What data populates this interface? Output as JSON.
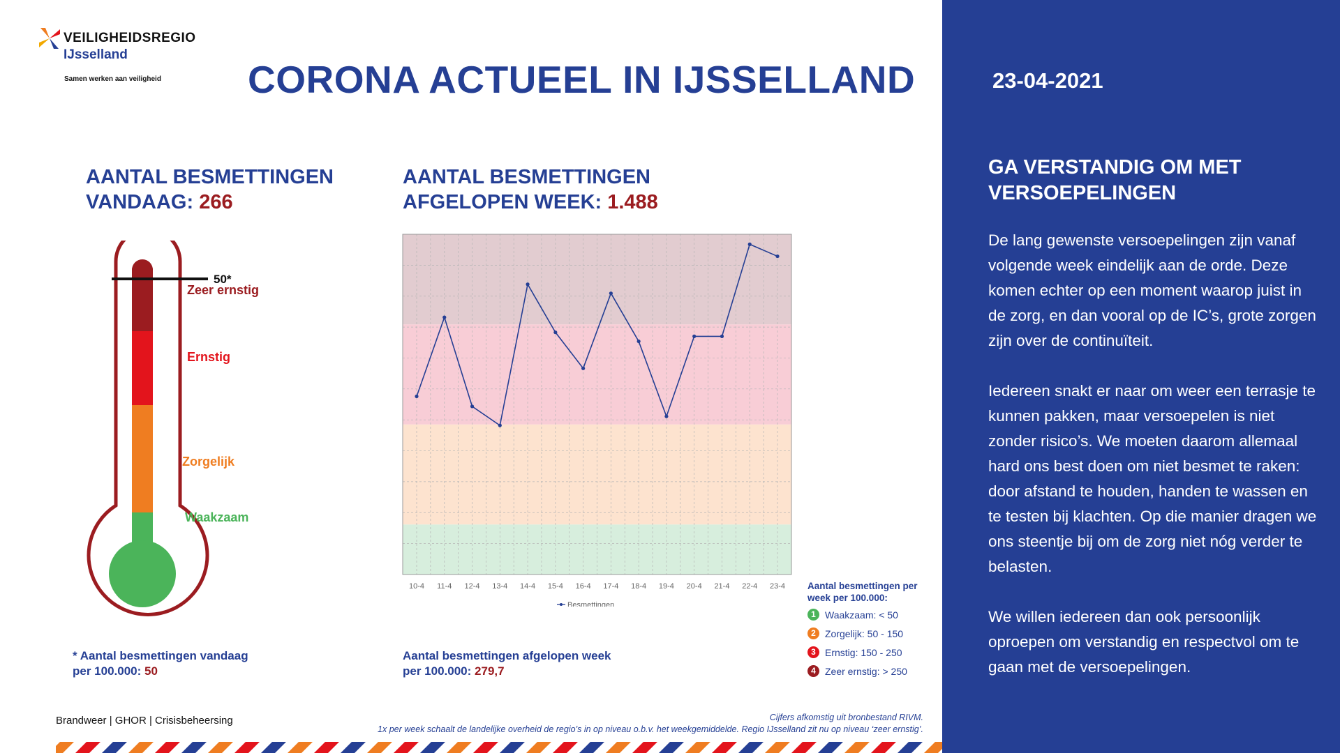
{
  "header": {
    "logo_brand": "VEILIGHEIDSREGIO",
    "logo_region": "IJsselland",
    "logo_tagline": "Samen werken aan veiligheid",
    "title": "CORONA ACTUEEL IN IJSSELLAND"
  },
  "today": {
    "title_line1": "AANTAL BESMETTINGEN",
    "title_line2": "VANDAAG:",
    "value": "266",
    "threshold_label": "50*",
    "zones": [
      "Zeer ernstig",
      "Ernstig",
      "Zorgelijk",
      "Waakzaam"
    ],
    "note_line1": "* Aantal besmettingen vandaag",
    "note_line2": "per 100.000:",
    "note_value": "50"
  },
  "week": {
    "title_line1": "AANTAL BESMETTINGEN",
    "title_line2": "AFGELOPEN WEEK:",
    "value": "1.488",
    "note_line1": "Aantal besmettingen afgelopen week",
    "note_line2": "per 100.000:",
    "note_value": "279,7"
  },
  "chart_data": {
    "type": "line",
    "title": "",
    "xlabel": "",
    "ylabel": "",
    "categories": [
      "10-4",
      "11-4",
      "12-4",
      "13-4",
      "14-4",
      "15-4",
      "16-4",
      "17-4",
      "18-4",
      "19-4",
      "20-4",
      "21-4",
      "22-4",
      "23-4"
    ],
    "series": [
      {
        "name": "Besmettingen",
        "values": [
          178,
          257,
          168,
          149,
          290,
          242,
          206,
          281,
          233,
          158,
          238,
          238,
          330,
          318
        ]
      }
    ],
    "ylim": [
      0,
      340
    ],
    "bands": [
      {
        "from": 0,
        "to": 50,
        "color": "#d7eedd"
      },
      {
        "from": 50,
        "to": 150,
        "color": "#fde3cf"
      },
      {
        "from": 150,
        "to": 250,
        "color": "#f8cdd6"
      },
      {
        "from": 250,
        "to": 340,
        "color": "#e2ccd0"
      }
    ],
    "grid": true,
    "legend": "bottom-center",
    "line_color": "#253f94"
  },
  "legend": {
    "title_line1": "Aantal besmettingen per",
    "title_line2": "week per 100.000:",
    "items": [
      {
        "n": "1",
        "label": "Waakzaam: < 50",
        "color": "#4bb45a"
      },
      {
        "n": "2",
        "label": "Zorgelijk: 50 - 150",
        "color": "#ef7d21"
      },
      {
        "n": "3",
        "label": "Ernstig: 150 - 250",
        "color": "#e3141c"
      },
      {
        "n": "4",
        "label": "Zeer ernstig: > 250",
        "color": "#9b1c20"
      }
    ]
  },
  "sidebar": {
    "date": "23-04-2021",
    "heading": "GA VERSTANDIG OM MET VERSOEPELINGEN",
    "para1": "De lang gewenste versoepelingen zijn vanaf volgende week eindelijk aan de orde. Deze komen echter op een moment waarop juist in de zorg, en dan vooral op de IC’s, grote zorgen zijn over de continuïteit.",
    "para2": "Iedereen snakt er naar om weer een terrasje te kunnen pakken, maar versoepelen is niet zonder risico’s. We moeten daarom allemaal hard ons best doen om niet besmet te raken: door afstand te houden, handen te wassen en te testen bij klachten. Op die manier dragen we ons steentje bij om de zorg niet nóg verder te belasten.",
    "para3": "We willen iedereen dan ook persoonlijk oproepen om verstandig en respectvol om te gaan met de versoepelingen."
  },
  "footer": {
    "credits": "Brandweer | GHOR | Crisisbeheersing",
    "source_line1": "Cijfers afkomstig uit bronbestand RIVM.",
    "source_line2": "1x per week schaalt de landelijke overheid de regio’s in op niveau o.b.v. het weekgemiddelde. Regio IJsselland zit nu op niveau ‘zeer ernstig’."
  },
  "colors": {
    "brand_blue": "#253f94",
    "dark_red": "#9b1c20",
    "red": "#e3141c",
    "orange": "#ef7d21",
    "green": "#4bb45a"
  }
}
